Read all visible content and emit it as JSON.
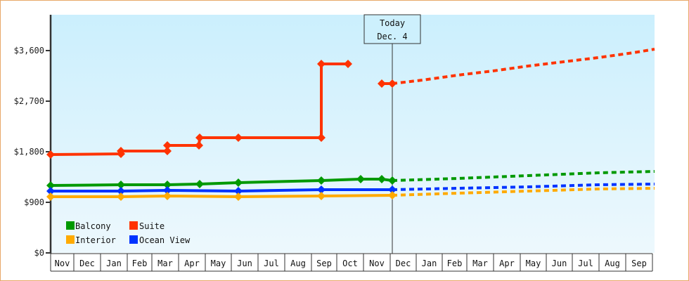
{
  "chart_data": {
    "type": "line",
    "title": "",
    "xlabel": "",
    "ylabel": "",
    "ylim": [
      0,
      4200
    ],
    "yticks": [
      "$0",
      "$900",
      "$1,800",
      "$2,700",
      "$3,600"
    ],
    "ytick_values": [
      0,
      900,
      1800,
      2700,
      3600
    ],
    "categories": [
      "Nov",
      "Dec",
      "Jan",
      "Feb",
      "Mar",
      "Apr",
      "May",
      "Jun",
      "Jul",
      "Aug",
      "Sep",
      "Oct",
      "Nov",
      "Dec",
      "Jan",
      "Feb",
      "Mar",
      "Apr",
      "May",
      "Jun",
      "Jul",
      "Aug",
      "Sep"
    ],
    "annotation": {
      "line1": "Today",
      "line2": "Dec. 4"
    },
    "legend_position": "bottom-left inside plot",
    "grid": false,
    "series": [
      {
        "name": "Balcony",
        "color": "#009900",
        "historical": [
          {
            "x": "Nov",
            "y": 1200
          },
          {
            "x": "Jan",
            "y": 1210
          },
          {
            "x": "Mar",
            "y": 1215
          },
          {
            "x": "Apr",
            "y": 1220
          },
          {
            "x": "Jun",
            "y": 1240
          },
          {
            "x": "Sep",
            "y": 1280
          },
          {
            "x": "Oct",
            "y": 1300
          },
          {
            "x": "Nov",
            "y": 1300
          },
          {
            "x": "Dec 4",
            "y": 1285
          }
        ],
        "forecast": [
          {
            "x": "Dec 4",
            "y": 1285
          },
          {
            "x": "Sep",
            "y": 1450
          }
        ]
      },
      {
        "name": "Suite",
        "color": "#ff3300",
        "historical": [
          {
            "x": "Nov",
            "y": 1750
          },
          {
            "x": "Jan",
            "y": 1780
          },
          {
            "x": "Jan",
            "y": 1810
          },
          {
            "x": "Mar",
            "y": 1810
          },
          {
            "x": "Mar",
            "y": 1910
          },
          {
            "x": "Apr",
            "y": 1910
          },
          {
            "x": "Apr",
            "y": 2050
          },
          {
            "x": "Jun",
            "y": 2050
          },
          {
            "x": "Sep",
            "y": 2050
          },
          {
            "x": "Sep",
            "y": 3350
          },
          {
            "x": "Oct",
            "y": 3350
          },
          {
            "x": "Nov",
            "y": 3000
          },
          {
            "x": "Dec 4",
            "y": 3000
          }
        ],
        "forecast": [
          {
            "x": "Dec 4",
            "y": 3000
          },
          {
            "x": "Sep",
            "y": 3610
          }
        ]
      },
      {
        "name": "Interior",
        "color": "#ffaa00",
        "historical": [
          {
            "x": "Nov",
            "y": 1000
          },
          {
            "x": "Jan",
            "y": 1000
          },
          {
            "x": "Mar",
            "y": 1010
          },
          {
            "x": "Jun",
            "y": 1000
          },
          {
            "x": "Sep",
            "y": 1010
          },
          {
            "x": "Dec 4",
            "y": 1025
          }
        ],
        "forecast": [
          {
            "x": "Dec 4",
            "y": 1025
          },
          {
            "x": "Sep",
            "y": 1150
          }
        ]
      },
      {
        "name": "Ocean View",
        "color": "#0033ff",
        "historical": [
          {
            "x": "Nov",
            "y": 1100
          },
          {
            "x": "Jan",
            "y": 1100
          },
          {
            "x": "Mar",
            "y": 1110
          },
          {
            "x": "Jun",
            "y": 1100
          },
          {
            "x": "Sep",
            "y": 1125
          },
          {
            "x": "Dec 4",
            "y": 1125
          }
        ],
        "forecast": [
          {
            "x": "Dec 4",
            "y": 1125
          },
          {
            "x": "Sep",
            "y": 1225
          }
        ]
      }
    ]
  },
  "legend": [
    {
      "label": "Balcony",
      "color": "#009900"
    },
    {
      "label": "Suite",
      "color": "#ff3300"
    },
    {
      "label": "Interior",
      "color": "#ffaa00"
    },
    {
      "label": "Ocean View",
      "color": "#0033ff"
    }
  ],
  "today": {
    "line1": "Today",
    "line2": "Dec. 4"
  }
}
